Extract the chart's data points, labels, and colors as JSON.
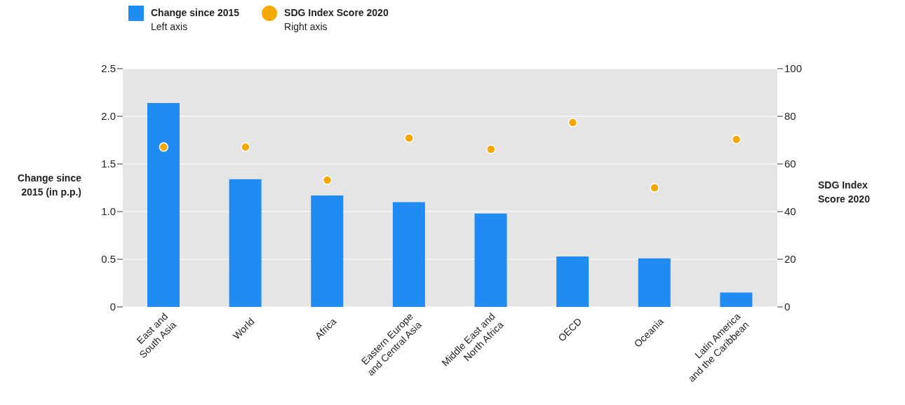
{
  "chart_data": {
    "type": "bar",
    "categories": [
      "East and South Asia",
      "World",
      "Africa",
      "Eastern Europe and Central Asia",
      "Middle East and North Africa",
      "OECD",
      "Oceania",
      "Latin America and the Caribbean"
    ],
    "series": [
      {
        "name": "Change since 2015",
        "color": "#1f8bf3",
        "values": [
          2.14,
          1.34,
          1.17,
          1.1,
          0.98,
          0.53,
          0.51,
          0.15
        ]
      },
      {
        "name": "SDG Index Score 2020",
        "type": "scatter",
        "axis": "y2",
        "color": "#f5a800",
        "values": [
          67.1,
          67.1,
          53.2,
          70.9,
          66.2,
          77.4,
          50,
          70.3
        ]
      }
    ],
    "annotations": [
      "Left axis",
      "Right axis"
    ],
    "ylabel": "Change since 2015 (in p.p.)",
    "y2label": "SDG Index Score 2020",
    "ylim": [
      0,
      2.5
    ],
    "yticks": [
      0,
      0.5,
      {
        "value": 1,
        "label": "1.0"
      },
      1.5,
      {
        "value": 2,
        "label": "2.0"
      },
      2.5
    ],
    "y2lim": [
      0,
      100
    ],
    "y2ticks": [
      0,
      20,
      40,
      60,
      80,
      100
    ],
    "grid": "y",
    "legend": "top left",
    "marker": "circle"
  }
}
